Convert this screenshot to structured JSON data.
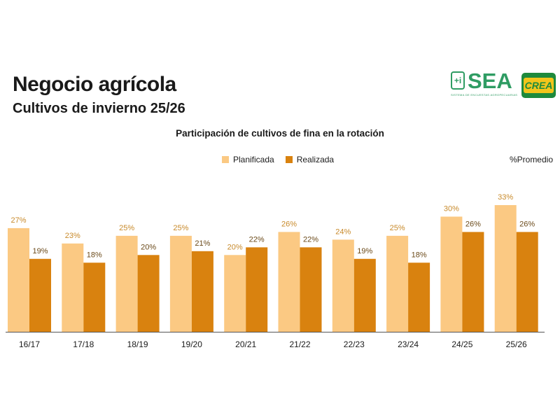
{
  "header": {
    "title": "Negocio agrícola",
    "subtitle": "Cultivos de invierno 25/26"
  },
  "logos": {
    "sea_word": "SEA",
    "sea_tagline": "SISTEMA DE ENCUESTAS AGROPECUARIAS",
    "crea_word": "CREA"
  },
  "colors": {
    "planificada": "#fbc983",
    "realizada": "#d9820f",
    "planificada_label": "#c88a2b",
    "realizada_label": "#6b4a1a",
    "axis": "#555555"
  },
  "chart_data": {
    "type": "bar",
    "title": "Participación de cultivos de fina en la rotación",
    "note": "%Promedio",
    "legend_position": "top",
    "grid": false,
    "categories": [
      "16/17",
      "17/18",
      "18/19",
      "19/20",
      "20/21",
      "21/22",
      "22/23",
      "23/24",
      "24/25",
      "25/26"
    ],
    "series": [
      {
        "name": "Planificada",
        "values": [
          27,
          23,
          25,
          25,
          20,
          26,
          24,
          25,
          30,
          33
        ],
        "labels": [
          "27%",
          "23%",
          "25%",
          "25%",
          "20%",
          "26%",
          "24%",
          "25%",
          "30%",
          "33%"
        ]
      },
      {
        "name": "Realizada",
        "values": [
          19,
          18,
          20,
          21,
          22,
          22,
          19,
          18,
          26,
          26
        ],
        "labels": [
          "19%",
          "18%",
          "20%",
          "21%",
          "22%",
          "22%",
          "19%",
          "18%",
          "26%",
          "26%"
        ]
      }
    ],
    "ylim": [
      0,
      33
    ]
  }
}
